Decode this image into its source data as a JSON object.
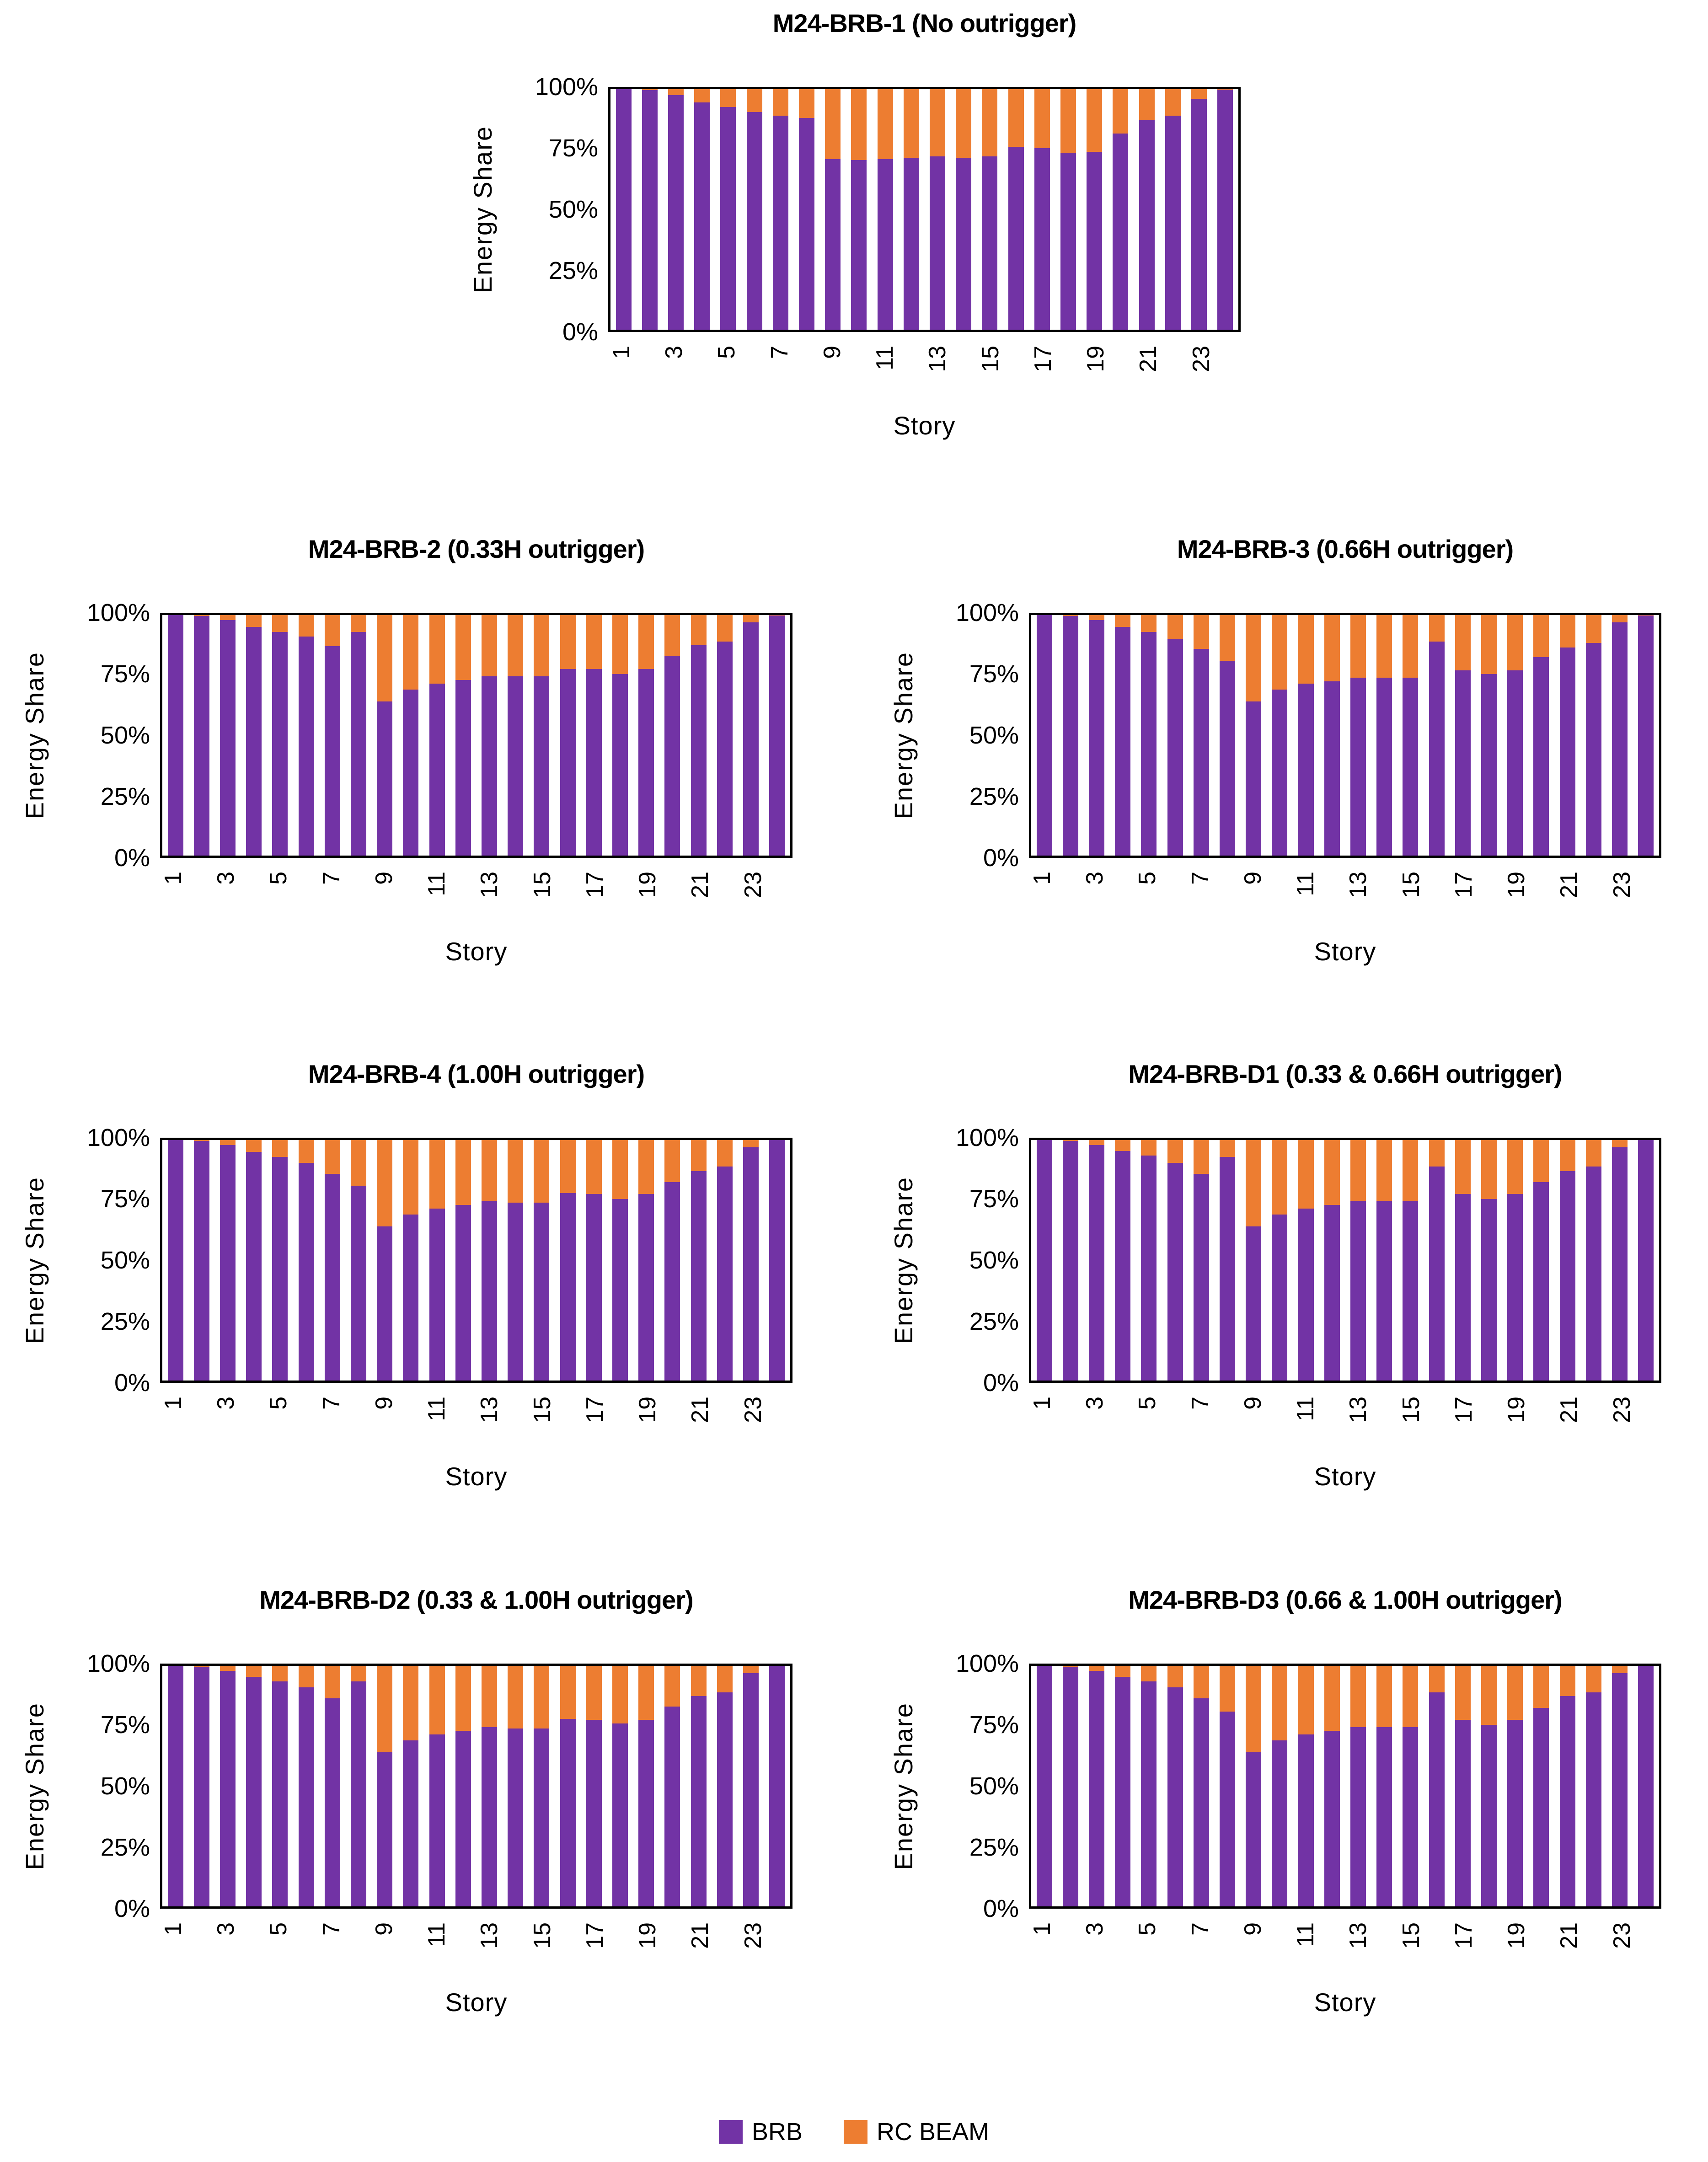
{
  "page": {
    "background": "#ffffff"
  },
  "colors": {
    "brb": "#7233A5",
    "rc_beam": "#ED7D31",
    "axis": "#000000"
  },
  "axes": {
    "y_label": "Energy Share",
    "x_label": "Story",
    "y_ticks": [
      {
        "label": "100%",
        "value": 100
      },
      {
        "label": "75%",
        "value": 75
      },
      {
        "label": "50%",
        "value": 50
      },
      {
        "label": "25%",
        "value": 25
      },
      {
        "label": "0%",
        "value": 0
      }
    ],
    "categories": [
      1,
      2,
      3,
      4,
      5,
      6,
      7,
      8,
      9,
      10,
      11,
      12,
      13,
      14,
      15,
      16,
      17,
      18,
      19,
      20,
      21,
      22,
      23,
      24
    ],
    "x_tick_labels_shown": [
      1,
      3,
      5,
      7,
      9,
      11,
      13,
      15,
      17,
      19,
      21,
      23
    ]
  },
  "legend": {
    "position": "bottom-center",
    "items": [
      {
        "label": "BRB",
        "color": "#7233A5"
      },
      {
        "label": "RC BEAM",
        "color": "#ED7D31"
      }
    ]
  },
  "chart_data": [
    {
      "type": "bar",
      "stacked_100_percent": true,
      "title": "M24-BRB-1 (No outrigger)",
      "xlabel": "Story",
      "ylabel": "Energy Share",
      "ylim": [
        0,
        100
      ],
      "grid": false,
      "series": [
        {
          "name": "BRB",
          "color": "#7233A5",
          "values": [
            100,
            99.6,
            97.5,
            94.5,
            92.5,
            90.5,
            89,
            88,
            71,
            70.5,
            71,
            71.5,
            72,
            71.5,
            72,
            76,
            75.5,
            73.5,
            74,
            81.5,
            87,
            89,
            96,
            99.8
          ]
        },
        {
          "name": "RC BEAM",
          "color": "#ED7D31",
          "values": [
            0,
            0.4,
            2.5,
            5.5,
            7.5,
            9.5,
            11,
            12,
            29,
            29.5,
            29,
            28.5,
            28,
            28.5,
            28,
            24,
            24.5,
            26.5,
            26,
            18.5,
            13,
            11,
            4,
            0.2
          ]
        }
      ]
    },
    {
      "type": "bar",
      "stacked_100_percent": true,
      "title": "M24-BRB-2 (0.33H outrigger)",
      "xlabel": "Story",
      "ylabel": "Energy Share",
      "ylim": [
        0,
        100
      ],
      "grid": false,
      "series": [
        {
          "name": "BRB",
          "color": "#7233A5",
          "values": [
            100,
            99.6,
            98,
            95,
            93,
            91,
            87,
            93,
            64,
            69,
            71.5,
            73,
            74.5,
            74.5,
            74.5,
            77.5,
            77.5,
            75.5,
            77.5,
            83,
            87.5,
            89,
            97,
            99.8
          ]
        },
        {
          "name": "RC BEAM",
          "color": "#ED7D31",
          "values": [
            0,
            0.4,
            2,
            5,
            7,
            9,
            13,
            7,
            36,
            31,
            28.5,
            27,
            25.5,
            25.5,
            25.5,
            22.5,
            22.5,
            24.5,
            22.5,
            17,
            12.5,
            11,
            3,
            0.2
          ]
        }
      ]
    },
    {
      "type": "bar",
      "stacked_100_percent": true,
      "title": "M24-BRB-3 (0.66H outrigger)",
      "xlabel": "Story",
      "ylabel": "Energy Share",
      "ylim": [
        0,
        100
      ],
      "grid": false,
      "series": [
        {
          "name": "BRB",
          "color": "#7233A5",
          "values": [
            100,
            99.6,
            98,
            95,
            93,
            90,
            86,
            81,
            64,
            69,
            71.5,
            72.5,
            74,
            74,
            74,
            89,
            77,
            75.5,
            77,
            82.5,
            86.5,
            88.5,
            97,
            99.8
          ]
        },
        {
          "name": "RC BEAM",
          "color": "#ED7D31",
          "values": [
            0,
            0.4,
            2,
            5,
            7,
            10,
            14,
            19,
            36,
            31,
            28.5,
            27.5,
            26,
            26,
            26,
            11,
            23,
            24.5,
            23,
            17.5,
            13.5,
            11.5,
            3,
            0.2
          ]
        }
      ]
    },
    {
      "type": "bar",
      "stacked_100_percent": true,
      "title": "M24-BRB-4 (1.00H outrigger)",
      "xlabel": "Story",
      "ylabel": "Energy Share",
      "ylim": [
        0,
        100
      ],
      "grid": false,
      "series": [
        {
          "name": "BRB",
          "color": "#7233A5",
          "values": [
            100,
            99.6,
            98,
            95,
            93,
            90.5,
            86,
            81,
            64,
            69,
            71.5,
            73,
            74.5,
            74,
            74,
            78,
            77.5,
            75.5,
            77.5,
            82.5,
            87,
            89,
            97,
            100
          ]
        },
        {
          "name": "RC BEAM",
          "color": "#ED7D31",
          "values": [
            0,
            0.4,
            2,
            5,
            7,
            9.5,
            14,
            19,
            36,
            31,
            28.5,
            27,
            25.5,
            26,
            26,
            22,
            22.5,
            24.5,
            22.5,
            17.5,
            13,
            11,
            3,
            0
          ]
        }
      ]
    },
    {
      "type": "bar",
      "stacked_100_percent": true,
      "title": "M24-BRB-D1 (0.33 & 0.66H outrigger)",
      "xlabel": "Story",
      "ylabel": "Energy Share",
      "ylim": [
        0,
        100
      ],
      "grid": false,
      "series": [
        {
          "name": "BRB",
          "color": "#7233A5",
          "values": [
            100,
            99.6,
            98,
            95.5,
            93.5,
            90.5,
            86,
            93,
            64,
            69,
            71.5,
            73,
            74.5,
            74.5,
            74.5,
            89,
            77.5,
            75.5,
            77.5,
            82.5,
            87,
            89,
            97,
            100
          ]
        },
        {
          "name": "RC BEAM",
          "color": "#ED7D31",
          "values": [
            0,
            0.4,
            2,
            4.5,
            6.5,
            9.5,
            14,
            7,
            36,
            31,
            28.5,
            27,
            25.5,
            25.5,
            25.5,
            11,
            22.5,
            24.5,
            22.5,
            17.5,
            13,
            11,
            3,
            0
          ]
        }
      ]
    },
    {
      "type": "bar",
      "stacked_100_percent": true,
      "title": "M24-BRB-D2 (0.33 & 1.00H outrigger)",
      "xlabel": "Story",
      "ylabel": "Energy Share",
      "ylim": [
        0,
        100
      ],
      "grid": false,
      "series": [
        {
          "name": "BRB",
          "color": "#7233A5",
          "values": [
            100,
            99.6,
            98,
            95.5,
            93.5,
            91,
            86.5,
            93.5,
            64,
            69,
            71.5,
            73,
            74.5,
            74,
            74,
            78,
            77.5,
            76,
            77.5,
            83,
            87.5,
            89,
            97,
            100
          ]
        },
        {
          "name": "RC BEAM",
          "color": "#ED7D31",
          "values": [
            0,
            0.4,
            2,
            4.5,
            6.5,
            9,
            13.5,
            6.5,
            36,
            31,
            28.5,
            27,
            25.5,
            26,
            26,
            22,
            22.5,
            24,
            22.5,
            17,
            12.5,
            11,
            3,
            0
          ]
        }
      ]
    },
    {
      "type": "bar",
      "stacked_100_percent": true,
      "title": "M24-BRB-D3 (0.66 & 1.00H outrigger)",
      "xlabel": "Story",
      "ylabel": "Energy Share",
      "ylim": [
        0,
        100
      ],
      "grid": false,
      "series": [
        {
          "name": "BRB",
          "color": "#7233A5",
          "values": [
            100,
            99.6,
            98,
            95.5,
            93.5,
            91,
            86.5,
            81,
            64,
            69,
            71.5,
            73,
            74.5,
            74.5,
            74.5,
            89,
            77.5,
            75.5,
            77.5,
            82.5,
            87.5,
            89,
            97,
            100
          ]
        },
        {
          "name": "RC BEAM",
          "color": "#ED7D31",
          "values": [
            0,
            0.4,
            2,
            4.5,
            6.5,
            9,
            13.5,
            19,
            36,
            31,
            28.5,
            27,
            25.5,
            25.5,
            25.5,
            11,
            22.5,
            24.5,
            22.5,
            17.5,
            12.5,
            11,
            3,
            0
          ]
        }
      ]
    }
  ]
}
